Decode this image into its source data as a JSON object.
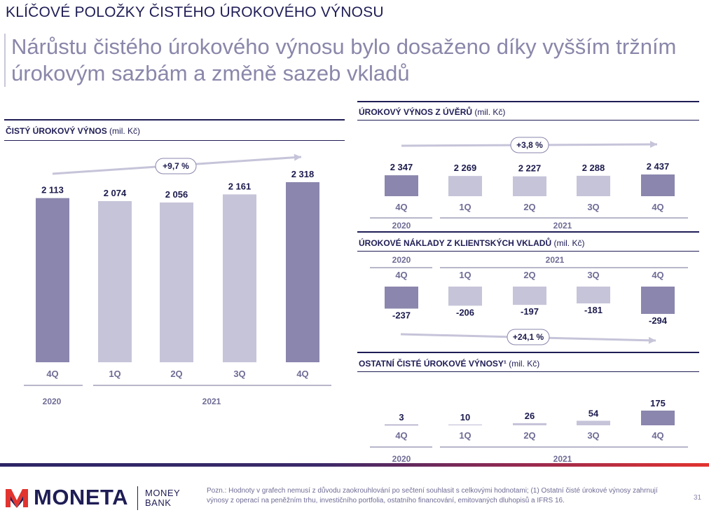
{
  "header": {
    "kicker": "KLÍČOVÉ POLOŽKY ČISTÉHO ÚROKOVÉHO VÝNOSU",
    "headline": "Nárůstu čistého úrokového výnosu bylo dosaženo díky vyšším tržním úrokovým sazbám a změně sazeb vkladů"
  },
  "colors": {
    "highlight": "#8a86ad",
    "normal": "#c6c4d9",
    "text": "#1b1a4d",
    "axis_text": "#6f6c95"
  },
  "chart_data": [
    {
      "type": "bar",
      "title": "ČISTÝ ÚROKOVÝ VÝNOS",
      "unit": "(mil. Kč)",
      "categories": [
        "4Q",
        "1Q",
        "2Q",
        "3Q",
        "4Q"
      ],
      "values": [
        2113,
        2074,
        2056,
        2161,
        2318
      ],
      "value_labels": [
        "2 113",
        "2 074",
        "2 056",
        "2 161",
        "2 318"
      ],
      "years": [
        "2020",
        "2021"
      ],
      "change_label": "+9,7 %",
      "ylim": [
        0,
        2400
      ]
    },
    {
      "type": "bar",
      "title": "ÚROKOVÝ VÝNOS Z ÚVĚRŮ",
      "unit": "(mil. Kč)",
      "categories": [
        "4Q",
        "1Q",
        "2Q",
        "3Q",
        "4Q"
      ],
      "values": [
        2347,
        2269,
        2227,
        2288,
        2437
      ],
      "value_labels": [
        "2 347",
        "2 269",
        "2 227",
        "2 288",
        "2 437"
      ],
      "years": [
        "2020",
        "2021"
      ],
      "change_label": "+3,8 %"
    },
    {
      "type": "bar",
      "title": "ÚROKOVÉ NÁKLADY Z KLIENTSKÝCH VKLADŮ",
      "unit": "(mil. Kč)",
      "categories": [
        "4Q",
        "1Q",
        "2Q",
        "3Q",
        "4Q"
      ],
      "values": [
        -237,
        -206,
        -197,
        -181,
        -294
      ],
      "value_labels": [
        "-237",
        "-206",
        "-197",
        "-181",
        "-294"
      ],
      "years": [
        "2020",
        "2021"
      ],
      "change_label": "+24,1 %"
    },
    {
      "type": "bar",
      "title": "OSTATNÍ ČISTÉ ÚROKOVÉ VÝNOSY¹",
      "unit": "(mil. Kč)",
      "categories": [
        "4Q",
        "1Q",
        "2Q",
        "3Q",
        "4Q"
      ],
      "values": [
        3,
        10,
        26,
        54,
        175
      ],
      "value_labels": [
        "3",
        "10",
        "26",
        "54",
        "175"
      ],
      "years": [
        "2020",
        "2021"
      ]
    }
  ],
  "footer": {
    "logo_text": "MONETA",
    "logo_sub_1": "MONEY",
    "logo_sub_2": "BANK",
    "footnote": "Pozn.: Hodnoty v grafech nemusí z důvodu zaokrouhlování po sečtení souhlasit s celkovými hodnotami; (1) Ostatní čisté úrokové výnosy zahrnují výnosy z operací na peněžním trhu, investičního portfolia, ostatního financování, emitovaných dluhopisů a IFRS 16.",
    "page_number": "31"
  }
}
